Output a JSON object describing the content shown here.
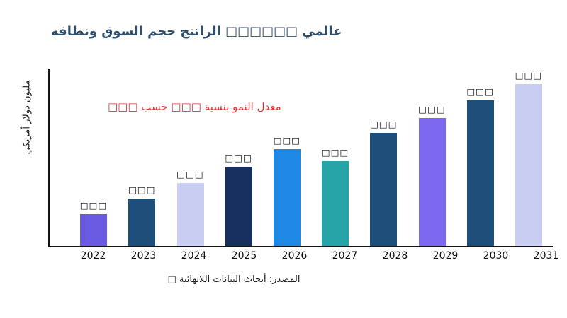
{
  "title_color": "#31506e",
  "annotation": {
    "text": "معدل النمو بنسبة □□□ حسب □□□",
    "color": "#e03131"
  },
  "source": "المصدر: أبحاث البيانات اللانهائية □",
  "chart_data": {
    "type": "bar",
    "title": "عالمي □□□□□□ الراتنج حجم السوق ونطاقه",
    "ylabel": "مليون دولار أمريكي",
    "xlabel": "",
    "categories": [
      "2022",
      "2023",
      "2024",
      "2025",
      "2026",
      "2027",
      "2028",
      "2029",
      "2030",
      "2031"
    ],
    "values": [
      45,
      67,
      89,
      112,
      137,
      120,
      160,
      181,
      206,
      229
    ],
    "value_labels": [
      "□□□",
      "□□□",
      "□□□",
      "□□□",
      "□□□",
      "□□□",
      "□□□",
      "□□□",
      "□□□",
      "□□□"
    ],
    "bar_colors": [
      "#6a5ae1",
      "#1e4f7b",
      "#c9cdf1",
      "#172f5d",
      "#1e88e5",
      "#27a4a8",
      "#1e4f7b",
      "#7b68ee",
      "#1e4f7b",
      "#c9cdf1"
    ],
    "ylim": [
      0,
      250
    ],
    "grid": false,
    "legend": false
  }
}
